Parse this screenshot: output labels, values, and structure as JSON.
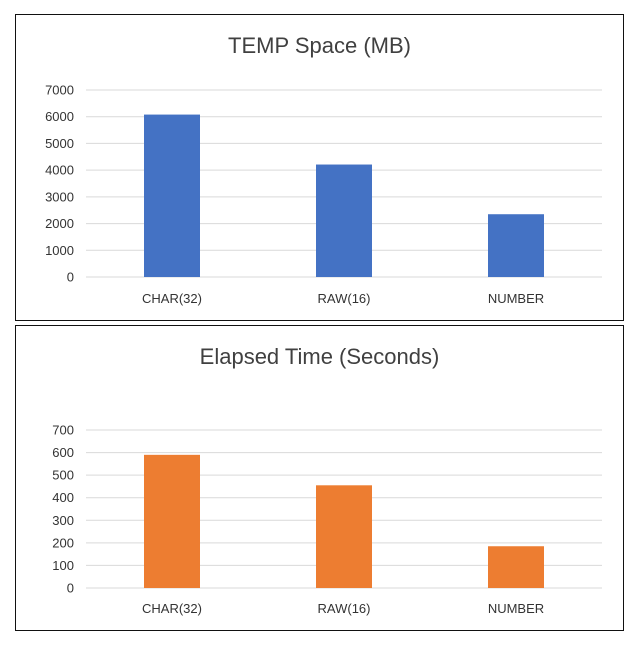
{
  "chart_data": [
    {
      "type": "bar",
      "title": "TEMP Space (MB)",
      "categories": [
        "CHAR(32)",
        "RAW(16)",
        "NUMBER"
      ],
      "values": [
        6080,
        4210,
        2350
      ],
      "ylim": [
        0,
        7000
      ],
      "yticks": [
        0,
        1000,
        2000,
        3000,
        4000,
        5000,
        6000,
        7000
      ],
      "color": "#4472C4",
      "grid": true,
      "xlabel": "",
      "ylabel": ""
    },
    {
      "type": "bar",
      "title": "Elapsed Time (Seconds)",
      "categories": [
        "CHAR(32)",
        "RAW(16)",
        "NUMBER"
      ],
      "values": [
        590,
        455,
        185
      ],
      "ylim": [
        0,
        700
      ],
      "yticks": [
        0,
        100,
        200,
        300,
        400,
        500,
        600,
        700
      ],
      "color": "#ED7D31",
      "grid": true,
      "xlabel": "",
      "ylabel": ""
    }
  ]
}
